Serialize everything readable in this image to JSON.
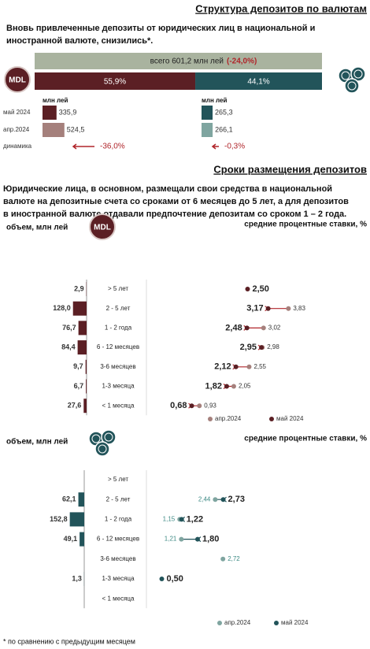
{
  "title": "Структура депозитов по валютам",
  "intro": [
    "Вновь привлеченные депозиты от юридических лиц в национальной и",
    "иностранной валюте, снизились*."
  ],
  "currency_structure": {
    "total_label": "всего 601,2 млн лей",
    "total_change": "(-24,0%)",
    "badge": "MDL",
    "share": {
      "values": [
        55.9,
        44.1
      ],
      "value_labels": [
        "55,9%",
        "44,1%"
      ],
      "colors": [
        "#5b1f24",
        "#22545a"
      ]
    },
    "total_color": "#a9b39f",
    "unit": "млн лей",
    "rows": [
      "май 2024",
      "апр.2024",
      "динамика"
    ],
    "mdl": {
      "values": [
        335.9,
        524.5
      ],
      "value_labels": [
        "335,9",
        "524,5"
      ],
      "colors": [
        "#5b1f24",
        "#a5807c"
      ],
      "change": "-36,0%"
    },
    "fx": {
      "values": [
        265.3,
        266.1
      ],
      "value_labels": [
        "265,3",
        "266,1"
      ],
      "colors": [
        "#22545a",
        "#7fa5a0"
      ],
      "change": "-0,3%"
    }
  },
  "terms_title": "Сроки размещения депозитов",
  "terms_text": [
    "Юридические лица, в основном, размещали свои средства в национальной",
    "валюте на депозитные счета со сроками от  6 месяцев до 5 лет, а для депозитов",
    "в иностранной валюте отдавали предпочтение депозитам со сроком 1 – 2 года."
  ],
  "chart_data": [
    {
      "type": "dumbbell",
      "badge": "MDL",
      "volume_label": "объем, млн лей",
      "rate_label": "средние процентные ставки, %",
      "categories": [
        "> 5 лет",
        "2 - 5 лет",
        "1 - 2 года",
        "6 - 12 месяцев",
        "3-6 месяцев",
        "1-3 месяца",
        "< 1 месяца"
      ],
      "volumes": {
        "color": "#5b1f24",
        "values": [
          2.9,
          128.0,
          76.7,
          84.4,
          9.7,
          6.7,
          27.6
        ],
        "value_labels": [
          "2,9",
          "128,0",
          "76,7",
          "84,4",
          "9,7",
          "6,7",
          "27,6"
        ]
      },
      "series": [
        {
          "name": "апр.2024",
          "color": "#a5807c",
          "values": [
            null,
            3.83,
            3.02,
            2.98,
            2.55,
            2.05,
            0.93
          ],
          "value_labels": [
            null,
            "3,83",
            "3,02",
            "2,98",
            "2,55",
            "2,05",
            "0,93"
          ]
        },
        {
          "name": "май 2024",
          "color": "#5b1f24",
          "values": [
            2.5,
            3.17,
            2.48,
            2.95,
            2.12,
            1.82,
            0.68
          ],
          "value_labels": [
            "2,50",
            "3,17",
            "2,48",
            "2,95",
            "2,12",
            "1,82",
            "0,68"
          ]
        }
      ]
    },
    {
      "type": "dumbbell",
      "volume_label": "объем, млн лей",
      "rate_label": "средние процентные ставки, %",
      "categories": [
        "> 5 лет",
        "2 - 5 лет",
        "1 - 2 года",
        "6 - 12 месяцев",
        "3-6 месяцев",
        "1-3 месяца",
        "< 1 месяца"
      ],
      "volumes": {
        "color": "#22545a",
        "values": [
          null,
          62.1,
          152.8,
          49.1,
          null,
          1.3,
          null
        ],
        "value_labels": [
          null,
          "62,1",
          "152,8",
          "49,1",
          null,
          "1,3",
          null
        ]
      },
      "series": [
        {
          "name": "апр.2024",
          "color": "#7fa5a0",
          "values": [
            null,
            2.44,
            1.15,
            1.21,
            2.72,
            null,
            null
          ],
          "value_labels": [
            null,
            "2,44",
            "1,15",
            "1,21",
            "2,72",
            null,
            null
          ]
        },
        {
          "name": "май 2024",
          "color": "#22545a",
          "values": [
            null,
            2.73,
            1.22,
            1.8,
            null,
            0.5,
            null
          ],
          "value_labels": [
            null,
            "2,73",
            "1,22",
            "1,80",
            null,
            "0,50",
            null
          ]
        }
      ]
    }
  ],
  "footnote": "* по сравнению с предыдущим месяцем"
}
